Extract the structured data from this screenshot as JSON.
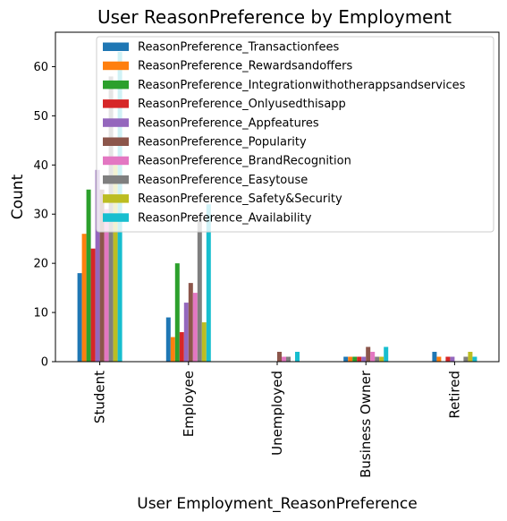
{
  "chart_data": {
    "type": "bar",
    "title": "User ReasonPreference by Employment",
    "xlabel": "User Employment_ReasonPreference",
    "ylabel": "Count",
    "ylim": [
      0,
      67
    ],
    "yticks": [
      0,
      10,
      20,
      30,
      40,
      50,
      60
    ],
    "grid": false,
    "legend_position": "top-right",
    "categories": [
      "Student",
      "Employee",
      "Unemployed",
      "Business Owner",
      "Retired"
    ],
    "series": [
      {
        "name": "ReasonPreference_Transactionfees",
        "color": "#1f77b4",
        "values": [
          18,
          9,
          0,
          1,
          2
        ]
      },
      {
        "name": "ReasonPreference_Rewardsandoffers",
        "color": "#ff7f0e",
        "values": [
          26,
          5,
          0,
          1,
          1
        ]
      },
      {
        "name": "ReasonPreference_Integrationwithotherappsandservices",
        "color": "#2ca02c",
        "values": [
          35,
          20,
          0,
          1,
          0
        ]
      },
      {
        "name": "ReasonPreference_Onlyusedthisapp",
        "color": "#d62728",
        "values": [
          23,
          6,
          0,
          1,
          1
        ]
      },
      {
        "name": "ReasonPreference_Appfeatures",
        "color": "#9467bd",
        "values": [
          39,
          12,
          0,
          1,
          1
        ]
      },
      {
        "name": "ReasonPreference_Popularity",
        "color": "#8c564b",
        "values": [
          35,
          16,
          2,
          3,
          0
        ]
      },
      {
        "name": "ReasonPreference_BrandRecognition",
        "color": "#e377c2",
        "values": [
          31,
          14,
          1,
          2,
          0
        ]
      },
      {
        "name": "ReasonPreference_Easytouse",
        "color": "#7f7f7f",
        "values": [
          58,
          29,
          1,
          1,
          1
        ]
      },
      {
        "name": "ReasonPreference_Safety&Security",
        "color": "#bcbd22",
        "values": [
          40,
          8,
          0,
          1,
          2
        ]
      },
      {
        "name": "ReasonPreference_Availability",
        "color": "#17becf",
        "values": [
          63,
          32,
          2,
          3,
          1
        ]
      }
    ]
  }
}
